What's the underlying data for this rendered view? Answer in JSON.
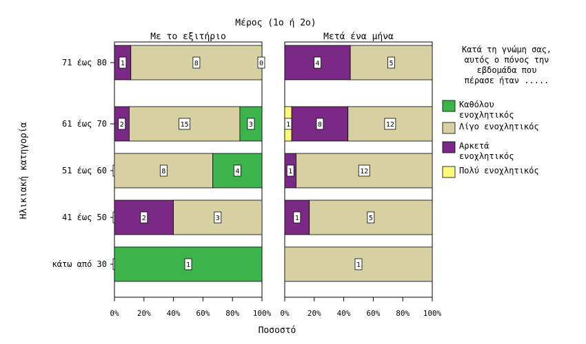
{
  "chart_data": {
    "type": "bar",
    "orientation": "horizontal",
    "stacked": "percent",
    "title": "Μέρος (1ο ή 2ο)",
    "xlabel": "Ποσοστό",
    "ylabel": "Ηλικιακή κατηγορία",
    "xlim": [
      0,
      100
    ],
    "x_ticks": [
      "0%",
      "20%",
      "40%",
      "60%",
      "80%",
      "100%"
    ],
    "categories": [
      "71 έως 80",
      "61 έως 70",
      "51 έως 60",
      "41 έως 50",
      "κάτω από 30"
    ],
    "legend_title": [
      "Κατά τη γνώμη σας,",
      "αυτός ο πόνος την",
      "εβδομάδα που",
      "πέρασε ήταν ....."
    ],
    "legend_position": "right",
    "series_meta": [
      {
        "name": [
          "Καθόλου",
          "ενοχλητικός"
        ],
        "color": "#3cb44b"
      },
      {
        "name": [
          "Λίγο ενοχλητικός"
        ],
        "color": "#d6d0a2"
      },
      {
        "name": [
          "Αρκετά",
          "ενοχλητικός"
        ],
        "color": "#7a2a84"
      },
      {
        "name": [
          "Πολύ ενοχλητικός"
        ],
        "color": "#fbf87c"
      }
    ],
    "panels": [
      {
        "title": "Με το εξιτήριο",
        "rows": [
          {
            "category": "71 έως 80",
            "order": [
              2,
              1,
              0
            ],
            "counts": [
              1,
              8,
              0
            ]
          },
          {
            "category": "61 έως 70",
            "order": [
              2,
              1,
              0
            ],
            "counts": [
              2,
              15,
              3
            ]
          },
          {
            "category": "51 έως 60",
            "order": [
              2,
              1,
              0
            ],
            "counts": [
              0,
              8,
              4
            ]
          },
          {
            "category": "41 έως 50",
            "order": [
              0,
              2,
              1
            ],
            "counts": [
              0,
              2,
              3
            ]
          },
          {
            "category": "κάτω από 30",
            "order": [
              2,
              0
            ],
            "counts": [
              0,
              1
            ]
          }
        ]
      },
      {
        "title": "Μετά ένα μήνα",
        "rows": [
          {
            "category": "71 έως 80",
            "order": [
              2,
              1
            ],
            "counts": [
              4,
              5
            ]
          },
          {
            "category": "61 έως 70",
            "order": [
              3,
              2,
              1
            ],
            "counts": [
              1,
              8,
              12
            ]
          },
          {
            "category": "51 έως 60",
            "order": [
              2,
              1
            ],
            "counts": [
              1,
              12
            ]
          },
          {
            "category": "41 έως 50",
            "order": [
              2,
              1
            ],
            "counts": [
              1,
              5
            ]
          },
          {
            "category": "κάτω από 30",
            "order": [
              1
            ],
            "counts": [
              1
            ]
          }
        ]
      }
    ]
  }
}
